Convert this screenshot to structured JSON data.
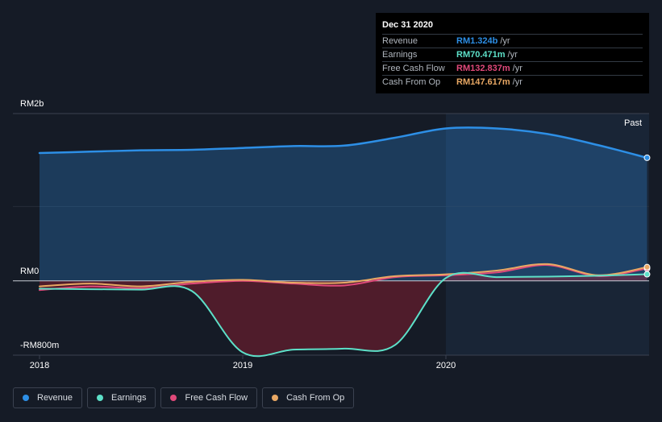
{
  "chart_data": {
    "type": "area",
    "title": "",
    "xlabel": "",
    "ylabel": "",
    "unit": "RM",
    "ylim": [
      -800,
      1800
    ],
    "y_ticks": [
      {
        "value": 1800,
        "label": "RM2b"
      },
      {
        "value": 0,
        "label": "RM0"
      },
      {
        "value": -800,
        "label": "-RM800m"
      }
    ],
    "x_ticks": [
      {
        "value": 2018,
        "label": "2018"
      },
      {
        "value": 2019,
        "label": "2019"
      },
      {
        "value": 2020,
        "label": "2020"
      }
    ],
    "xlim": [
      2017.87,
      2020.99
    ],
    "x": [
      2018.0,
      2018.25,
      2018.5,
      2018.75,
      2019.0,
      2019.25,
      2019.5,
      2019.75,
      2020.0,
      2020.25,
      2020.5,
      2020.75,
      2020.99
    ],
    "past_region_start": 2020.0,
    "past_label": "Past",
    "series": [
      {
        "name": "Revenue",
        "color": "#2d8fe6",
        "fill": true,
        "values": [
          1375,
          1390,
          1405,
          1410,
          1430,
          1450,
          1455,
          1540,
          1640,
          1640,
          1580,
          1460,
          1324
        ]
      },
      {
        "name": "Earnings",
        "color": "#5de0c8",
        "fill": true,
        "values": [
          -85,
          -90,
          -95,
          -110,
          -770,
          -740,
          -730,
          -690,
          30,
          40,
          45,
          55,
          70.471
        ]
      },
      {
        "name": "Free Cash Flow",
        "color": "#e0497a",
        "fill": false,
        "values": [
          -100,
          -60,
          -80,
          -30,
          0,
          -30,
          -50,
          40,
          60,
          90,
          170,
          50,
          132.837
        ]
      },
      {
        "name": "Cash From Op",
        "color": "#e9a864",
        "fill": false,
        "values": [
          -60,
          -30,
          -60,
          -10,
          10,
          -20,
          -20,
          50,
          70,
          110,
          180,
          60,
          147.617
        ]
      }
    ]
  },
  "tooltip": {
    "date": "Dec 31 2020",
    "rows": [
      {
        "name": "Revenue",
        "value": "RM1.324b",
        "unit": "/yr",
        "color": "#2d8fe6"
      },
      {
        "name": "Earnings",
        "value": "RM70.471m",
        "unit": "/yr",
        "color": "#5de0c8"
      },
      {
        "name": "Free Cash Flow",
        "value": "RM132.837m",
        "unit": "/yr",
        "color": "#e0497a"
      },
      {
        "name": "Cash From Op",
        "value": "RM147.617m",
        "unit": "/yr",
        "color": "#e9a864"
      }
    ]
  },
  "legend": [
    {
      "label": "Revenue",
      "color": "#2d8fe6"
    },
    {
      "label": "Earnings",
      "color": "#5de0c8"
    },
    {
      "label": "Free Cash Flow",
      "color": "#e0497a"
    },
    {
      "label": "Cash From Op",
      "color": "#e9a864"
    }
  ]
}
